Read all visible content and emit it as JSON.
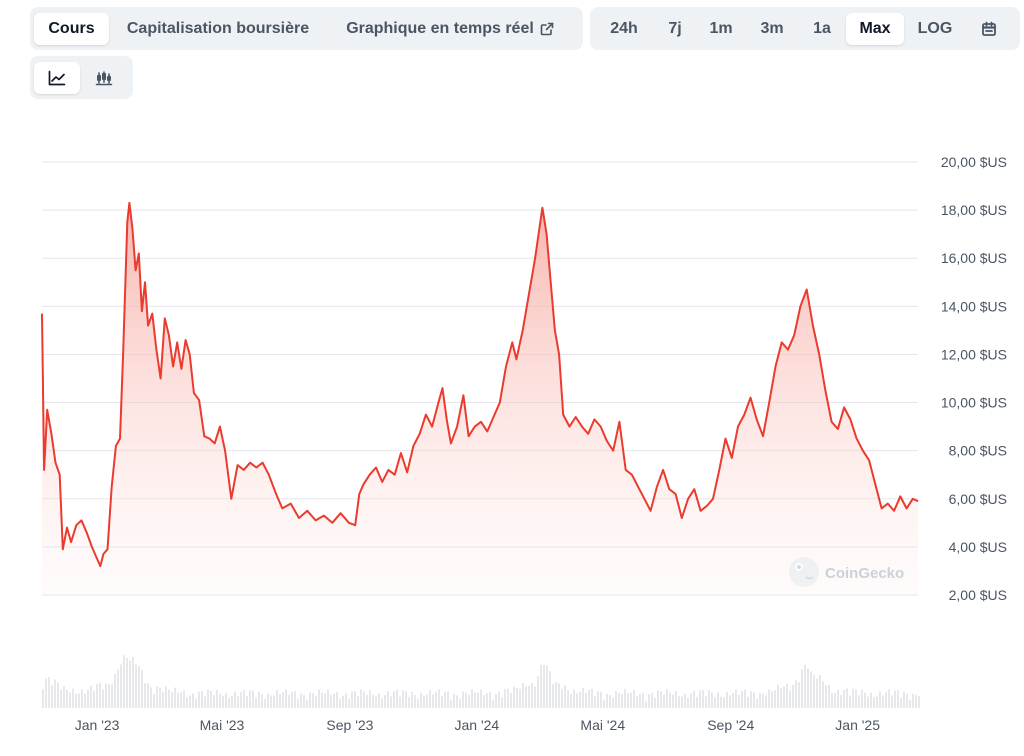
{
  "tabs": {
    "cours": "Cours",
    "capitalisation": "Capitalisation boursière",
    "temps_reel": "Graphique en temps réel"
  },
  "ranges": {
    "h24": "24h",
    "d7": "7j",
    "m1": "1m",
    "m3": "3m",
    "a1": "1a",
    "max": "Max",
    "log": "LOG",
    "active": "Max"
  },
  "chart_type": {
    "active": "line"
  },
  "icons": {
    "external_link": "external-link-icon",
    "calendar": "calendar-icon",
    "line_chart": "line-chart-icon",
    "candlestick": "candlestick-icon",
    "watermark_logo": "coingecko-logo-icon"
  },
  "watermark": "CoinGecko",
  "colors": {
    "line": "#ea3b2e",
    "area_top": "#f6a8a0",
    "grid": "#e5e7eb",
    "volume": "#d1d5db"
  },
  "chart_data": {
    "type": "area",
    "x_ticks": [
      "Jan '23",
      "Mai '23",
      "Sep '23",
      "Jan '24",
      "Mai '24",
      "Sep '24",
      "Jan '25"
    ],
    "y_ticks": [
      "20,00 $US",
      "18,00 $US",
      "16,00 $US",
      "14,00 $US",
      "12,00 $US",
      "10,00 $US",
      "8,00 $US",
      "6,00 $US",
      "4,00 $US",
      "2,00 $US"
    ],
    "ylim": [
      2,
      20
    ],
    "x_range": [
      "2022-11-09",
      "2025-02-28"
    ],
    "series": [
      {
        "points": [
          [
            "2022-11-09",
            13.7
          ],
          [
            "2022-11-11",
            7.2
          ],
          [
            "2022-11-14",
            9.7
          ],
          [
            "2022-11-18",
            8.7
          ],
          [
            "2022-11-22",
            7.5
          ],
          [
            "2022-11-26",
            7.0
          ],
          [
            "2022-11-29",
            3.9
          ],
          [
            "2022-12-03",
            4.8
          ],
          [
            "2022-12-07",
            4.2
          ],
          [
            "2022-12-12",
            4.9
          ],
          [
            "2022-12-17",
            5.1
          ],
          [
            "2022-12-22",
            4.6
          ],
          [
            "2022-12-27",
            4.0
          ],
          [
            "2023-01-01",
            3.5
          ],
          [
            "2023-01-04",
            3.2
          ],
          [
            "2023-01-07",
            3.7
          ],
          [
            "2023-01-11",
            3.9
          ],
          [
            "2023-01-15",
            6.5
          ],
          [
            "2023-01-19",
            8.2
          ],
          [
            "2023-01-23",
            8.5
          ],
          [
            "2023-01-26",
            12.0
          ],
          [
            "2023-01-30",
            17.5
          ],
          [
            "2023-02-01",
            18.3
          ],
          [
            "2023-02-04",
            17.2
          ],
          [
            "2023-02-07",
            15.5
          ],
          [
            "2023-02-10",
            16.2
          ],
          [
            "2023-02-13",
            13.8
          ],
          [
            "2023-02-16",
            15.0
          ],
          [
            "2023-02-19",
            13.2
          ],
          [
            "2023-02-23",
            13.7
          ],
          [
            "2023-02-27",
            12.2
          ],
          [
            "2023-03-03",
            11.0
          ],
          [
            "2023-03-07",
            13.5
          ],
          [
            "2023-03-11",
            12.8
          ],
          [
            "2023-03-15",
            11.5
          ],
          [
            "2023-03-19",
            12.5
          ],
          [
            "2023-03-23",
            11.4
          ],
          [
            "2023-03-27",
            12.6
          ],
          [
            "2023-03-31",
            12.0
          ],
          [
            "2023-04-04",
            10.4
          ],
          [
            "2023-04-09",
            10.1
          ],
          [
            "2023-04-14",
            8.6
          ],
          [
            "2023-04-19",
            8.5
          ],
          [
            "2023-04-24",
            8.3
          ],
          [
            "2023-04-29",
            9.0
          ],
          [
            "2023-05-04",
            8.0
          ],
          [
            "2023-05-10",
            6.0
          ],
          [
            "2023-05-16",
            7.4
          ],
          [
            "2023-05-22",
            7.2
          ],
          [
            "2023-05-28",
            7.5
          ],
          [
            "2023-06-03",
            7.3
          ],
          [
            "2023-06-09",
            7.5
          ],
          [
            "2023-06-15",
            7.0
          ],
          [
            "2023-06-22",
            6.2
          ],
          [
            "2023-06-28",
            5.6
          ],
          [
            "2023-07-06",
            5.8
          ],
          [
            "2023-07-14",
            5.2
          ],
          [
            "2023-07-22",
            5.5
          ],
          [
            "2023-07-30",
            5.1
          ],
          [
            "2023-08-07",
            5.3
          ],
          [
            "2023-08-15",
            5.0
          ],
          [
            "2023-08-23",
            5.4
          ],
          [
            "2023-08-31",
            5.0
          ],
          [
            "2023-09-06",
            4.9
          ],
          [
            "2023-09-10",
            6.2
          ],
          [
            "2023-09-14",
            6.6
          ],
          [
            "2023-09-20",
            7.0
          ],
          [
            "2023-09-26",
            7.3
          ],
          [
            "2023-10-02",
            6.7
          ],
          [
            "2023-10-08",
            7.2
          ],
          [
            "2023-10-14",
            7.0
          ],
          [
            "2023-10-20",
            7.9
          ],
          [
            "2023-10-26",
            7.1
          ],
          [
            "2023-11-01",
            8.2
          ],
          [
            "2023-11-07",
            8.7
          ],
          [
            "2023-11-13",
            9.5
          ],
          [
            "2023-11-19",
            9.0
          ],
          [
            "2023-11-25",
            10.0
          ],
          [
            "2023-11-29",
            10.6
          ],
          [
            "2023-12-03",
            9.3
          ],
          [
            "2023-12-07",
            8.3
          ],
          [
            "2023-12-13",
            9.0
          ],
          [
            "2023-12-19",
            10.3
          ],
          [
            "2023-12-24",
            8.6
          ],
          [
            "2023-12-30",
            9.0
          ],
          [
            "2024-01-05",
            9.2
          ],
          [
            "2024-01-11",
            8.8
          ],
          [
            "2024-01-17",
            9.4
          ],
          [
            "2024-01-23",
            10.0
          ],
          [
            "2024-01-29",
            11.5
          ],
          [
            "2024-02-04",
            12.5
          ],
          [
            "2024-02-08",
            11.8
          ],
          [
            "2024-02-14",
            13.0
          ],
          [
            "2024-02-20",
            14.5
          ],
          [
            "2024-02-26",
            16.0
          ],
          [
            "2024-03-02",
            17.5
          ],
          [
            "2024-03-04",
            18.1
          ],
          [
            "2024-03-08",
            17.0
          ],
          [
            "2024-03-12",
            15.0
          ],
          [
            "2024-03-16",
            13.0
          ],
          [
            "2024-03-20",
            12.0
          ],
          [
            "2024-03-24",
            9.5
          ],
          [
            "2024-03-30",
            9.0
          ],
          [
            "2024-04-05",
            9.4
          ],
          [
            "2024-04-11",
            9.0
          ],
          [
            "2024-04-17",
            8.7
          ],
          [
            "2024-04-23",
            9.3
          ],
          [
            "2024-04-29",
            9.0
          ],
          [
            "2024-05-05",
            8.4
          ],
          [
            "2024-05-11",
            8.0
          ],
          [
            "2024-05-17",
            9.2
          ],
          [
            "2024-05-23",
            7.2
          ],
          [
            "2024-05-29",
            7.0
          ],
          [
            "2024-06-04",
            6.5
          ],
          [
            "2024-06-10",
            6.0
          ],
          [
            "2024-06-16",
            5.5
          ],
          [
            "2024-06-22",
            6.5
          ],
          [
            "2024-06-28",
            7.2
          ],
          [
            "2024-07-04",
            6.4
          ],
          [
            "2024-07-10",
            6.2
          ],
          [
            "2024-07-16",
            5.2
          ],
          [
            "2024-07-22",
            6.0
          ],
          [
            "2024-07-28",
            6.4
          ],
          [
            "2024-08-03",
            5.5
          ],
          [
            "2024-08-09",
            5.7
          ],
          [
            "2024-08-15",
            6.0
          ],
          [
            "2024-08-21",
            7.2
          ],
          [
            "2024-08-27",
            8.5
          ],
          [
            "2024-09-02",
            7.7
          ],
          [
            "2024-09-08",
            9.0
          ],
          [
            "2024-09-14",
            9.5
          ],
          [
            "2024-09-20",
            10.2
          ],
          [
            "2024-09-26",
            9.3
          ],
          [
            "2024-10-02",
            8.6
          ],
          [
            "2024-10-08",
            10.0
          ],
          [
            "2024-10-14",
            11.5
          ],
          [
            "2024-10-20",
            12.5
          ],
          [
            "2024-10-26",
            12.2
          ],
          [
            "2024-11-01",
            12.8
          ],
          [
            "2024-11-07",
            14.0
          ],
          [
            "2024-11-13",
            14.7
          ],
          [
            "2024-11-19",
            13.2
          ],
          [
            "2024-11-25",
            12.0
          ],
          [
            "2024-12-01",
            10.5
          ],
          [
            "2024-12-07",
            9.2
          ],
          [
            "2024-12-13",
            8.9
          ],
          [
            "2024-12-19",
            9.8
          ],
          [
            "2024-12-25",
            9.3
          ],
          [
            "2024-12-31",
            8.5
          ],
          [
            "2025-01-06",
            8.0
          ],
          [
            "2025-01-12",
            7.6
          ],
          [
            "2025-01-18",
            6.6
          ],
          [
            "2025-01-24",
            5.6
          ],
          [
            "2025-01-30",
            5.8
          ],
          [
            "2025-02-05",
            5.5
          ],
          [
            "2025-02-11",
            6.1
          ],
          [
            "2025-02-17",
            5.6
          ],
          [
            "2025-02-23",
            6.0
          ],
          [
            "2025-02-28",
            5.9
          ]
        ]
      }
    ],
    "volume": "relative bars along bottom, peaks near Jan '23, Mar '24 and Nov '24",
    "grid": true,
    "y_axis_position": "right"
  }
}
